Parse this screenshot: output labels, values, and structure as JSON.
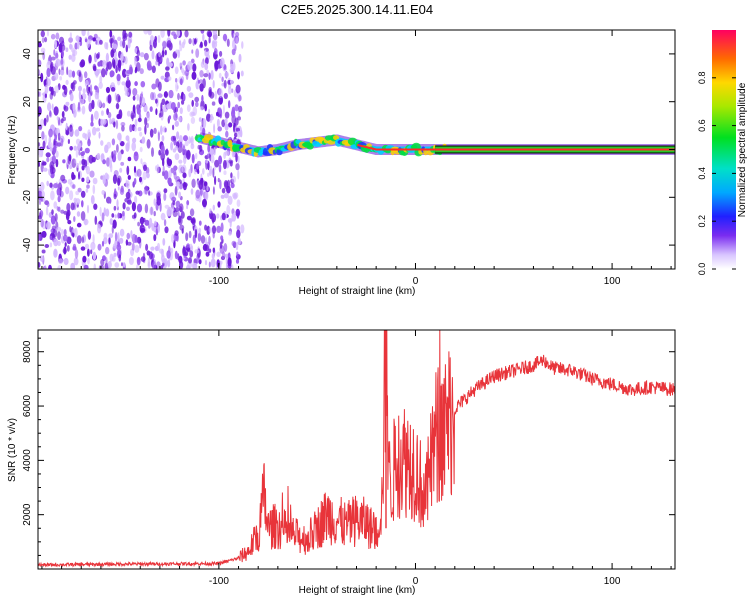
{
  "title": "C2E5.2025.300.14.11.E04",
  "colors": {
    "trace": "#e8343a",
    "spectrum_low": "#d4b8ff",
    "spectrum_mid": "#6a18d8",
    "spectrum_core": "#00c8ff",
    "spectrum_peak": "#ff2a2a",
    "band": "#28c828"
  },
  "chart_data": [
    {
      "type": "heatmap",
      "name": "spectrogram",
      "xlabel": "Height of straight line (km)",
      "ylabel": "Frequency (Hz)",
      "xlim": [
        -192,
        132
      ],
      "ylim": [
        -50,
        50
      ],
      "xticks": [
        -100,
        0,
        100
      ],
      "yticks": [
        -40,
        -20,
        0,
        20,
        40
      ],
      "carrier_track": {
        "x": [
          -110,
          -100,
          -90,
          -80,
          -70,
          -60,
          -50,
          -40,
          -30,
          -20,
          -10,
          0,
          10,
          20,
          132
        ],
        "y": [
          5,
          3,
          1,
          -1,
          0,
          2,
          3,
          4,
          2,
          0,
          0,
          0,
          0,
          0,
          0
        ]
      },
      "noise_region": [
        -192,
        -92
      ],
      "colorbar": {
        "label": "Normalized spectral amplitude",
        "ticks": [
          0.0,
          0.2,
          0.4,
          0.6,
          0.8
        ],
        "range": [
          0,
          1
        ]
      }
    },
    {
      "type": "line",
      "name": "snr",
      "xlabel": "Height of straight line (km)",
      "ylabel": "SNR (10 * v/v)",
      "xlim": [
        -192,
        132
      ],
      "ylim": [
        0,
        8800
      ],
      "xticks": [
        -100,
        0,
        100
      ],
      "yticks": [
        2000,
        4000,
        6000,
        8000
      ],
      "series": [
        {
          "name": "SNR",
          "x": [
            -192,
            -150,
            -100,
            -90,
            -85,
            -80,
            -77,
            -75,
            -70,
            -65,
            -60,
            -55,
            -50,
            -45,
            -40,
            -35,
            -30,
            -25,
            -20,
            -17,
            -15,
            -13,
            -10,
            -5,
            0,
            5,
            10,
            15,
            20,
            30,
            40,
            50,
            60,
            65,
            70,
            80,
            90,
            100,
            110,
            120,
            132
          ],
          "y": [
            150,
            180,
            200,
            400,
            650,
            1300,
            2700,
            1500,
            1600,
            1350,
            1200,
            1100,
            1500,
            2000,
            1800,
            1600,
            1800,
            1700,
            1300,
            2500,
            8800,
            2800,
            4000,
            4100,
            3800,
            2500,
            4800,
            5200,
            5900,
            6600,
            7100,
            7300,
            7500,
            7700,
            7400,
            7300,
            7000,
            6800,
            6600,
            6700,
            6600
          ]
        }
      ]
    }
  ]
}
